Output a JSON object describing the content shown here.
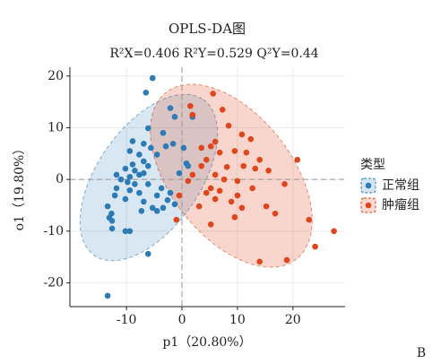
{
  "chart_data": {
    "type": "scatter",
    "title": "OPLS-DA图",
    "subtitle": "R²X=0.406   R²Y=0.529   Q²Y=0.44",
    "x_label": "p1（20.80%）",
    "y_label": "o1（19.80%）",
    "legend_title": "类型",
    "legend": "right",
    "grid": true,
    "panel_label": "B",
    "xlim": [
      -20.2,
      29.4
    ],
    "ylim": [
      -24.6,
      21.7
    ],
    "xticks": [
      -10,
      0,
      10,
      20
    ],
    "yticks": [
      -20,
      -10,
      0,
      10,
      20
    ],
    "series": [
      {
        "name": "正常组",
        "color": "#2c7bb6",
        "x": [
          -5.3,
          -6.5,
          -2.1,
          -1.3,
          -6.1,
          -3.4,
          -8.9,
          -6.9,
          -5.6,
          -2.9,
          -1.6,
          -9.4,
          -7.7,
          -4.5,
          -6.9,
          -8.9,
          -6.1,
          -10.2,
          -8.5,
          -6.9,
          -11.8,
          -9.4,
          -7.7,
          -11.0,
          -9.8,
          -8.5,
          -6.1,
          -3.7,
          -2.1,
          -11.8,
          -9.4,
          -7.7,
          -4.5,
          -2.6,
          -12.1,
          -10.2,
          -6.9,
          -5.3,
          -3.4,
          -13.4,
          -12.7,
          -13.1,
          -12.6,
          -10.2,
          -9.4,
          -1.3,
          -0.5,
          1.1,
          1.9,
          0.3,
          0.8,
          -6.1,
          -13.4,
          -12.6,
          -4.5,
          -7.3
        ],
        "values": [
          19.6,
          16.8,
          13.8,
          12.1,
          9.9,
          9.0,
          7.4,
          6.9,
          6.1,
          6.4,
          6.9,
          5.5,
          4.8,
          4.8,
          3.5,
          2.9,
          2.6,
          2.1,
          1.7,
          1.2,
          0.9,
          0.5,
          0.9,
          0,
          -0.5,
          -0.9,
          -0.9,
          -1.7,
          -2.6,
          -1.7,
          -2.1,
          -2.6,
          -3.1,
          -4.0,
          -3.1,
          -3.8,
          -4.3,
          -5.5,
          -5.5,
          -5.2,
          -6.6,
          -7.4,
          -9.5,
          -10.0,
          -10.0,
          -4.8,
          1.2,
          2.6,
          12.1,
          6.1,
          3.1,
          -14.4,
          -22.5,
          -8.0,
          -6.1,
          -6.1
        ]
      },
      {
        "name": "肿瘤组",
        "color": "#e0461c",
        "x": [
          5.6,
          1.5,
          7.3,
          1.9,
          8.4,
          10.8,
          6.0,
          3.5,
          5.2,
          12.4,
          9.5,
          11.6,
          4.4,
          6.8,
          14.0,
          20.8,
          11.1,
          13.2,
          3.5,
          1.9,
          6.0,
          7.6,
          10.0,
          1.1,
          5.2,
          4.4,
          6.8,
          8.9,
          10.0,
          12.7,
          18.5,
          -0.5,
          15.2,
          6.0,
          9.5,
          16.8,
          -1.0,
          10.8,
          5.2,
          22.9,
          27.4,
          24.0,
          18.9,
          14.0,
          3.1,
          8.1,
          15.6
        ],
        "values": [
          16.6,
          14.2,
          13.5,
          12.5,
          10.4,
          8.7,
          7.3,
          6.1,
          6.4,
          7.8,
          5.5,
          5.2,
          3.8,
          5.2,
          3.8,
          3.8,
          2.6,
          2.1,
          2.6,
          0.9,
          0.9,
          0,
          -0.3,
          -0.3,
          -1.7,
          -2.6,
          -2.2,
          -4.3,
          -3.1,
          -1.7,
          -0.9,
          -3.1,
          -5.2,
          -3.8,
          -7.3,
          -6.6,
          -7.8,
          -5.5,
          -8.7,
          -7.8,
          -10.0,
          -13.0,
          -15.6,
          -15.9,
          -5.2,
          2.4,
          1.7
        ]
      }
    ]
  }
}
